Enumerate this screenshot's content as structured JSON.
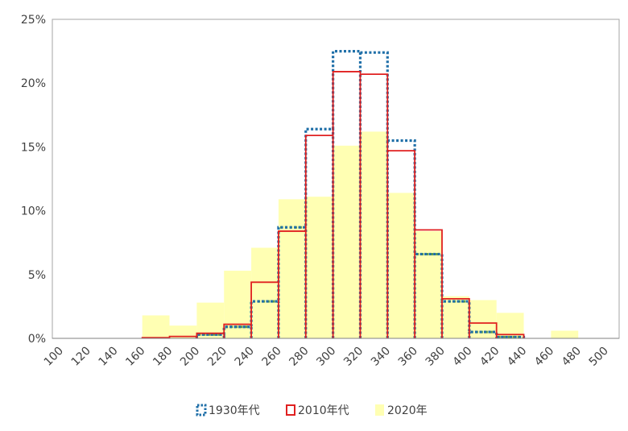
{
  "chart_data": {
    "type": "bar",
    "x_ticks": [
      "100",
      "120",
      "140",
      "160",
      "180",
      "200",
      "220",
      "240",
      "260",
      "280",
      "300",
      "320",
      "340",
      "360",
      "380",
      "400",
      "420",
      "440",
      "460",
      "480",
      "500"
    ],
    "y_ticks": [
      "0%",
      "5%",
      "10%",
      "15%",
      "20%",
      "25%"
    ],
    "ylim": [
      0,
      25
    ],
    "bins": [
      "140",
      "160",
      "180",
      "200",
      "220",
      "240",
      "260",
      "280",
      "300",
      "320",
      "340",
      "360",
      "380",
      "400",
      "420",
      "440",
      "460"
    ],
    "series": [
      {
        "name": "1930年代",
        "style": "dotted-outline",
        "color": "#1F6FA8",
        "values": [
          0,
          0,
          0,
          0.3,
          0.9,
          2.9,
          8.7,
          16.4,
          22.5,
          22.4,
          15.5,
          6.6,
          2.9,
          0.5,
          0.1,
          0,
          0
        ]
      },
      {
        "name": "2010年代",
        "style": "solid-outline",
        "color": "#E02020",
        "values": [
          0,
          0.05,
          0.15,
          0.4,
          1.1,
          4.4,
          8.4,
          15.9,
          20.9,
          20.7,
          14.7,
          8.5,
          3.1,
          1.2,
          0.3,
          0,
          0
        ]
      },
      {
        "name": "2020年",
        "style": "filled",
        "color": "#FFFFB3",
        "values": [
          0,
          1.8,
          1.0,
          2.8,
          5.3,
          7.1,
          10.9,
          11.1,
          15.1,
          16.2,
          11.4,
          8.4,
          3.3,
          3.0,
          2.0,
          0,
          0.6
        ]
      }
    ],
    "grid": false,
    "legend_position": "bottom"
  },
  "colors": {
    "dotted_green": "#5B9B4C",
    "axis": "#808080",
    "plot_border": "#A6A6A6"
  }
}
